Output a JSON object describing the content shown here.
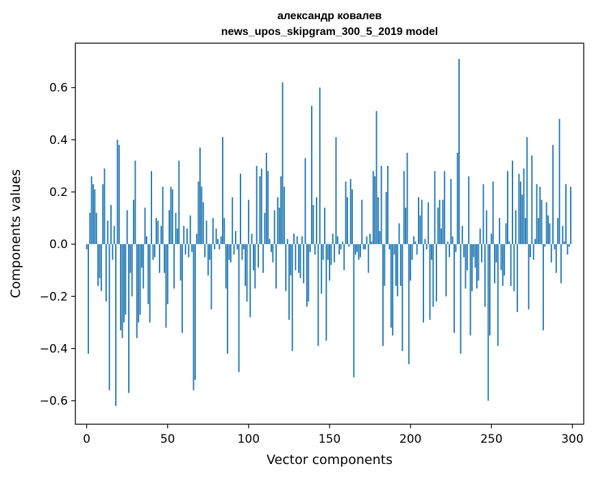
{
  "chart_data": {
    "type": "bar",
    "title_line1": "александр ковалев",
    "title_line2": "news_upos_skipgram_300_5_2019 model",
    "xlabel": "Vector components",
    "ylabel": "Components values",
    "bar_color": "#1f77b4",
    "xlim": [
      -7,
      307
    ],
    "ylim": [
      -0.69,
      0.77
    ],
    "xticks": [
      0,
      50,
      100,
      150,
      200,
      250,
      300
    ],
    "xtick_labels": [
      "0",
      "50",
      "100",
      "150",
      "200",
      "250",
      "300"
    ],
    "yticks": [
      -0.6,
      -0.4,
      -0.2,
      0.0,
      0.2,
      0.4,
      0.6
    ],
    "ytick_labels": [
      "−0.6",
      "−0.4",
      "−0.2",
      "0.0",
      "0.2",
      "0.4",
      "0.6"
    ],
    "grid": false,
    "values": [
      -0.02,
      -0.42,
      0.12,
      0.26,
      0.23,
      0.21,
      0.12,
      -0.16,
      -0.13,
      -0.18,
      0.23,
      0.29,
      -0.22,
      0.09,
      -0.56,
      0.15,
      -0.06,
      0.07,
      -0.62,
      0.4,
      0.38,
      -0.33,
      -0.36,
      -0.3,
      -0.27,
      0.13,
      -0.57,
      -0.11,
      -0.2,
      0.17,
      0.32,
      -0.36,
      -0.3,
      -0.27,
      -0.09,
      -0.17,
      0.14,
      0.03,
      -0.23,
      -0.3,
      0.28,
      -0.06,
      -0.05,
      0.1,
      0.09,
      -0.11,
      0.07,
      0.22,
      -0.11,
      -0.32,
      -0.23,
      0.13,
      0.22,
      0.21,
      -0.17,
      0.12,
      0.06,
      0.32,
      -0.14,
      -0.34,
      0.07,
      -0.04,
      0.06,
      -0.05,
      0.11,
      -0.03,
      -0.56,
      -0.52,
      0.04,
      0.24,
      0.37,
      0.22,
      0.16,
      -0.05,
      0.09,
      -0.12,
      -0.06,
      -0.25,
      0.1,
      -0.02,
      0.06,
      0.02,
      -0.02,
      0.03,
      0.41,
      0.1,
      -0.17,
      -0.42,
      -0.06,
      -0.07,
      0.18,
      -0.04,
      0.05,
      -0.02,
      -0.49,
      0.27,
      -0.06,
      -0.02,
      -0.16,
      -0.22,
      0.17,
      -0.28,
      0.04,
      -0.1,
      -0.17,
      0.3,
      -0.09,
      0.26,
      0.29,
      -0.11,
      0.12,
      0.35,
      0.28,
      0.02,
      -0.03,
      -0.07,
      0.13,
      -0.17,
      0.18,
      0.14,
      0.26,
      0.62,
      0.22,
      -0.18,
      0.02,
      -0.29,
      -0.12,
      -0.41,
      0.04,
      -0.1,
      0.03,
      -0.11,
      -0.13,
      0.03,
      -0.15,
      0.33,
      -0.24,
      -0.22,
      -0.03,
      0.53,
      0.15,
      -0.04,
      0.18,
      -0.39,
      0.6,
      -0.19,
      -0.06,
      0.14,
      -0.37,
      -0.06,
      -0.14,
      -0.08,
      0.04,
      -0.07,
      0.41,
      0.03,
      -0.04,
      -0.02,
      0.01,
      -0.1,
      0.24,
      0.18,
      -0.01,
      0.25,
      0.21,
      -0.51,
      -0.04,
      -0.03,
      -0.06,
      -0.05,
      0.17,
      -0.02,
      -0.02,
      0.03,
      -0.11,
      0.04,
      0.01,
      0.28,
      0.26,
      0.51,
      0.18,
      0.05,
      0.3,
      -0.39,
      -0.16,
      0.2,
      0.3,
      -0.02,
      -0.32,
      -0.35,
      -0.04,
      -0.16,
      -0.2,
      0.08,
      -0.16,
      -0.41,
      0.28,
      0.14,
      0.35,
      -0.46,
      -0.14,
      -0.06,
      0.03,
      0.01,
      -0.04,
      0.18,
      0.11,
      0.17,
      -0.3,
      0.02,
      -0.02,
      0.16,
      -0.29,
      -0.06,
      -0.24,
      0.28,
      -0.22,
      0.14,
      0.17,
      0.06,
      0.17,
      0.28,
      -0.2,
      0.01,
      -0.05,
      0.25,
      0.03,
      -0.34,
      -0.03,
      0.35,
      0.71,
      -0.42,
      0.07,
      -0.05,
      -0.17,
      -0.1,
      0.26,
      -0.35,
      -0.18,
      -0.05,
      -0.09,
      -0.17,
      -0.14,
      0.06,
      -0.07,
      0.23,
      -0.24,
      0.13,
      -0.6,
      -0.35,
      0.04,
      0.24,
      -0.15,
      -0.07,
      -0.39,
      0.1,
      -0.1,
      -0.16,
      -0.12,
      0.08,
      0.28,
      0.01,
      -0.16,
      0.32,
      -0.18,
      0.13,
      -0.26,
      0.27,
      0.24,
      0.19,
      0.29,
      0.1,
      0.41,
      -0.25,
      -0.05,
      0.34,
      -0.06,
      0.02,
      0.23,
      0.1,
      0.22,
      0.17,
      -0.33,
      -0.01,
      0.16,
      0.11,
      0.08,
      -0.07,
      0.38,
      -0.02,
      -0.11,
      0.1,
      0.48,
      -0.15,
      0.07,
      0.01,
      0.23,
      -0.04,
      -0.01,
      0.22
    ]
  }
}
